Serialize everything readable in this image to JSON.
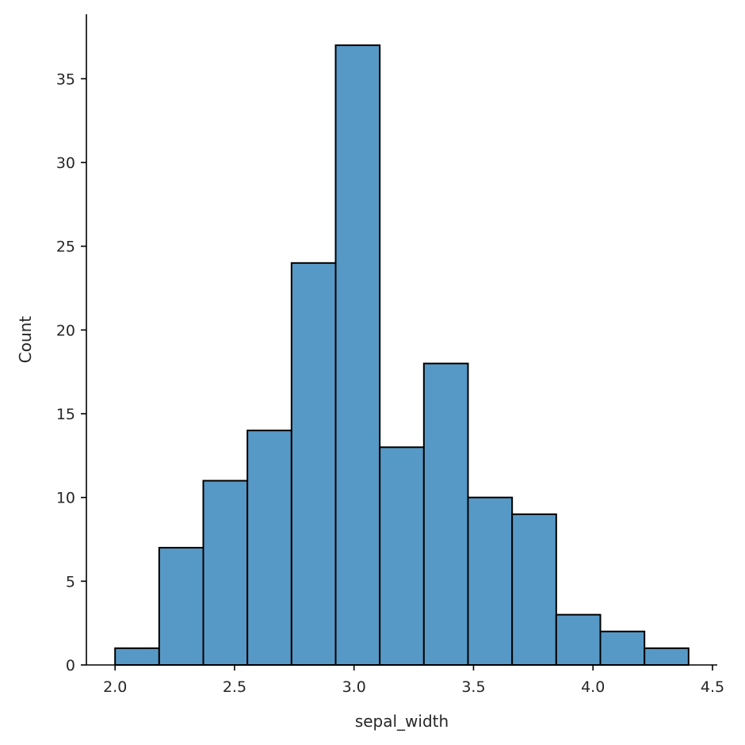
{
  "chart_data": {
    "type": "bar",
    "subtype": "histogram",
    "title": "",
    "xlabel": "sepal_width",
    "ylabel": "Count",
    "bins": [
      {
        "x0": 2.0,
        "x1": 2.1846,
        "count": 1
      },
      {
        "x0": 2.1846,
        "x1": 2.3692,
        "count": 7
      },
      {
        "x0": 2.3692,
        "x1": 2.5538,
        "count": 11
      },
      {
        "x0": 2.5538,
        "x1": 2.7385,
        "count": 14
      },
      {
        "x0": 2.7385,
        "x1": 2.9231,
        "count": 24
      },
      {
        "x0": 2.9231,
        "x1": 3.1077,
        "count": 37
      },
      {
        "x0": 3.1077,
        "x1": 3.2923,
        "count": 13
      },
      {
        "x0": 3.2923,
        "x1": 3.4769,
        "count": 18
      },
      {
        "x0": 3.4769,
        "x1": 3.6615,
        "count": 10
      },
      {
        "x0": 3.6615,
        "x1": 3.8462,
        "count": 9
      },
      {
        "x0": 3.8462,
        "x1": 4.0308,
        "count": 3
      },
      {
        "x0": 4.0308,
        "x1": 4.2154,
        "count": 2
      },
      {
        "x0": 4.2154,
        "x1": 4.4,
        "count": 1
      }
    ],
    "xlim": [
      1.88,
      4.52
    ],
    "ylim": [
      0,
      38.85
    ],
    "xticks": [
      2.0,
      2.5,
      3.0,
      3.5,
      4.0,
      4.5
    ],
    "xtick_labels": [
      "2.0",
      "2.5",
      "3.0",
      "3.5",
      "4.0",
      "4.5"
    ],
    "yticks": [
      0,
      5,
      10,
      15,
      20,
      25,
      30,
      35
    ],
    "ytick_labels": [
      "0",
      "5",
      "10",
      "15",
      "20",
      "25",
      "30",
      "35"
    ],
    "bar_color": "#5799c6",
    "edge_color": "#000000",
    "grid": false,
    "legend": "none"
  }
}
